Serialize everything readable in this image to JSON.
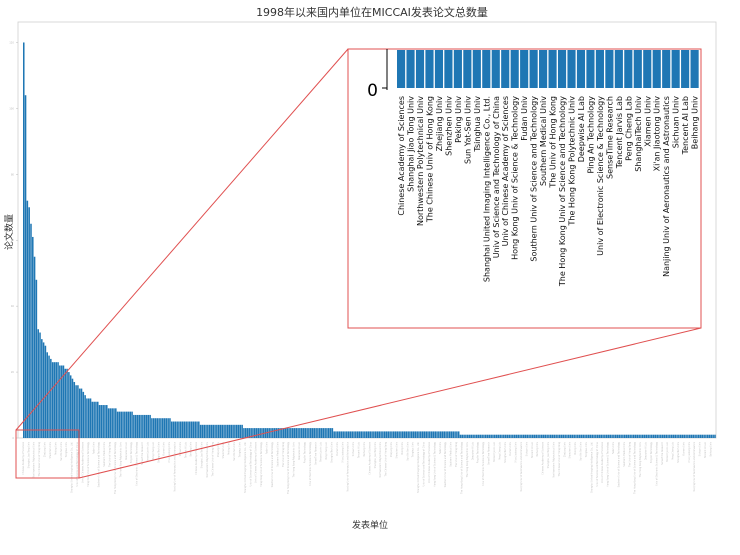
{
  "chart_data": {
    "type": "bar",
    "title": "1998年以来国内单位在MICCAI发表论文总数量",
    "xlabel": "发表单位",
    "ylabel": "论文数量",
    "ylim": [
      0,
      125
    ],
    "yticks": [
      0,
      20,
      40,
      60,
      80,
      100,
      120
    ],
    "grid": false,
    "bar_color": "#1f77b4",
    "highlight_color": "#d62728",
    "values": [
      120,
      104,
      72,
      70,
      65,
      61,
      55,
      48,
      33,
      32,
      30,
      29,
      28,
      26,
      25,
      24,
      23,
      23,
      23,
      23,
      22,
      22,
      22,
      21,
      21,
      20,
      19,
      18,
      17,
      16,
      16,
      15,
      15,
      14,
      13,
      12,
      12,
      12,
      11,
      11,
      11,
      11,
      10,
      10,
      10,
      10,
      10,
      9,
      9,
      9,
      9,
      9,
      8,
      8,
      8,
      8,
      8,
      8,
      8,
      8,
      8,
      7,
      7,
      7,
      7,
      7,
      7,
      7,
      7,
      7,
      7,
      6,
      6,
      6,
      6,
      6,
      6,
      6,
      6,
      6,
      6,
      6,
      5,
      5,
      5,
      5,
      5,
      5,
      5,
      5,
      5,
      5,
      5,
      5,
      5,
      5,
      5,
      5,
      4,
      4,
      4,
      4,
      4,
      4,
      4,
      4,
      4,
      4,
      4,
      4,
      4,
      4,
      4,
      4,
      4,
      4,
      4,
      4,
      4,
      4,
      4,
      4,
      3,
      3,
      3,
      3,
      3,
      3,
      3,
      3,
      3,
      3,
      3,
      3,
      3,
      3,
      3,
      3,
      3,
      3,
      3,
      3,
      3,
      3,
      3,
      3,
      3,
      3,
      3,
      3,
      3,
      3,
      3,
      3,
      3,
      3,
      3,
      3,
      3,
      3,
      3,
      3,
      3,
      3,
      3,
      3,
      3,
      3,
      3,
      3,
      3,
      3,
      2,
      2,
      2,
      2,
      2,
      2,
      2,
      2,
      2,
      2,
      2,
      2,
      2,
      2,
      2,
      2,
      2,
      2,
      2,
      2,
      2,
      2,
      2,
      2,
      2,
      2,
      2,
      2,
      2,
      2,
      2,
      2,
      2,
      2,
      2,
      2,
      2,
      2,
      2,
      2,
      2,
      2,
      2,
      2,
      2,
      2,
      2,
      2,
      2,
      2,
      2,
      2,
      2,
      2,
      2,
      2,
      2,
      2,
      2,
      2,
      2,
      2,
      2,
      2,
      2,
      2,
      2,
      2,
      2,
      2,
      1,
      1,
      1,
      1,
      1,
      1,
      1,
      1,
      1,
      1,
      1,
      1,
      1,
      1,
      1,
      1,
      1,
      1,
      1,
      1,
      1,
      1,
      1,
      1,
      1,
      1,
      1,
      1,
      1,
      1,
      1,
      1,
      1,
      1,
      1,
      1,
      1,
      1,
      1,
      1,
      1,
      1,
      1,
      1,
      1,
      1,
      1,
      1,
      1,
      1,
      1,
      1,
      1,
      1,
      1,
      1,
      1,
      1,
      1,
      1,
      1,
      1,
      1,
      1,
      1,
      1,
      1,
      1,
      1,
      1,
      1,
      1,
      1,
      1,
      1,
      1,
      1,
      1,
      1,
      1,
      1,
      1,
      1,
      1,
      1,
      1,
      1,
      1,
      1,
      1,
      1,
      1,
      1,
      1,
      1,
      1,
      1,
      1,
      1,
      1,
      1,
      1,
      1,
      1,
      1,
      1,
      1,
      1,
      1,
      1,
      1,
      1,
      1,
      1,
      1,
      1,
      1,
      1,
      1,
      1,
      1,
      1,
      1,
      1,
      1,
      1,
      1,
      1,
      1,
      1,
      1,
      1,
      1,
      1,
      1,
      1,
      1,
      1,
      1,
      1,
      1,
      1
    ],
    "inset": {
      "ytick": "0",
      "categories": [
        "Chinese Academy of Sciences",
        "Shanghai Jiao Tong  Univ",
        "Northwestern Polytechnical Univ",
        "The Chinese  Univ of Hong Kong",
        "Zhejiang  Univ",
        "Shenzhen  Univ",
        "Peking  Univ",
        "Sun Yat-Sen  Univ",
        "Tsinghua  Univ",
        "Shanghai United Imaging Intelligence Co., Ltd.",
        "Univ of Science and Technology of China",
        "Univ of Chinese Academy of Sciences",
        "Hong Kong  Univ of Science & Technology",
        "Fudan  Univ",
        "Southern  Univ of Science and Technology",
        "Southern Medical  Univ",
        "The  Univ of Hong Kong",
        "The Hong Kong  Univ of Science and Technology",
        "The Hong Kong Polytechnic  Univ",
        "Deepwise AI Lab",
        "Ping An Technology",
        "Univ of Electronic Science & Technology",
        "SenseTime Research",
        "Tencent Jarvis Lab",
        "Peng Cheng Lab",
        "ShanghaiTech  Univ",
        "Xiamen  Univ",
        "Xi'an Jiaotong  Univ",
        "Nanjing  Univ of Aeronautics and Astronautics",
        "Sichuan  Univ",
        "Tencent AI Lab",
        "Beihang  Univ"
      ]
    }
  }
}
